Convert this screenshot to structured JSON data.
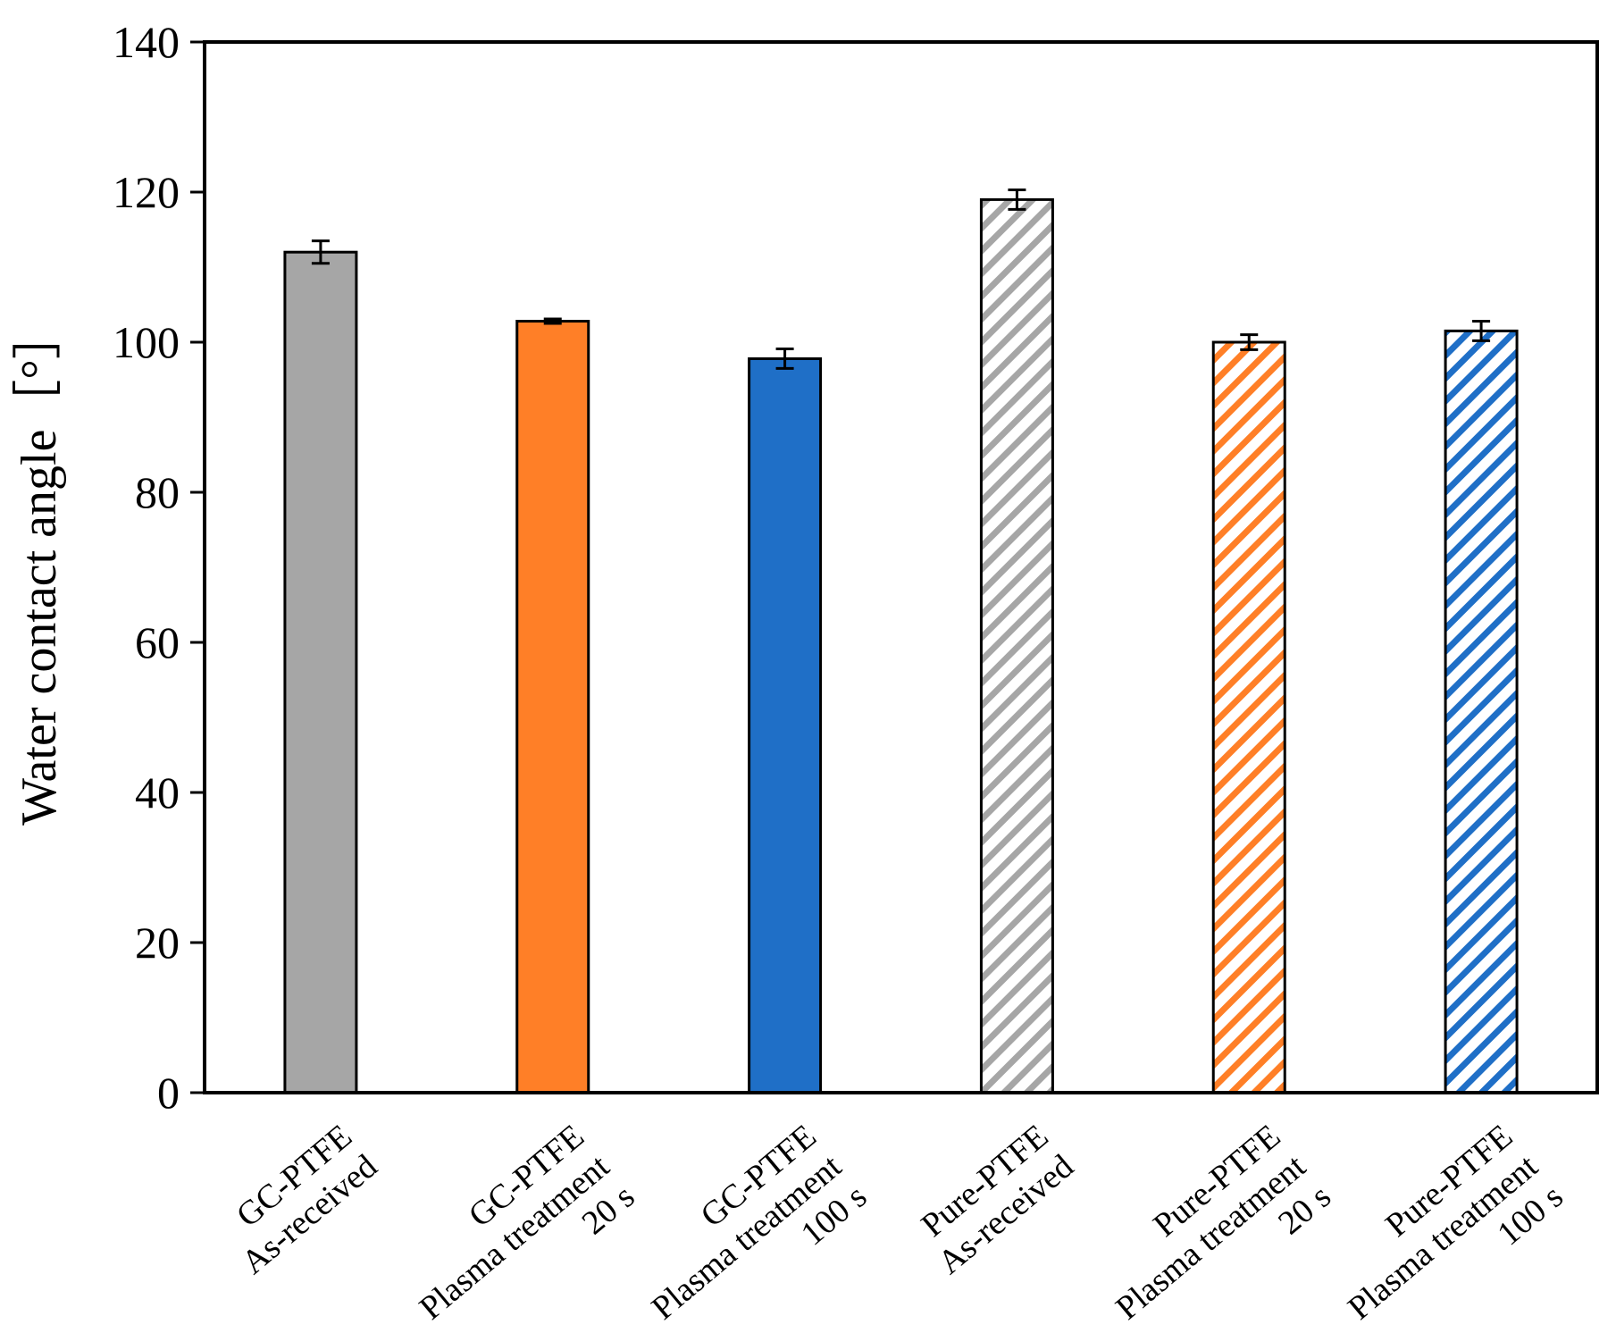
{
  "chart_data": {
    "type": "bar",
    "title": "",
    "xlabel": "",
    "ylabel": "Water contact angle［°］",
    "ylim": [
      0,
      140
    ],
    "yticks": [
      0,
      20,
      40,
      60,
      80,
      100,
      120,
      140
    ],
    "grid": false,
    "legend": "none",
    "categories": [
      [
        "GC-PTFE",
        "As-received"
      ],
      [
        "GC-PTFE",
        "Plasma treatment",
        "20 s"
      ],
      [
        "GC-PTFE",
        "Plasma treatment",
        "100 s"
      ],
      [
        "Pure-PTFE",
        "As-received"
      ],
      [
        "Pure-PTFE",
        "Plasma treatment",
        "20 s"
      ],
      [
        "Pure-PTFE",
        "Plasma treatment",
        "100 s"
      ]
    ],
    "values": [
      112.0,
      102.8,
      97.8,
      119.0,
      100.0,
      101.5
    ],
    "errors": [
      1.5,
      0.3,
      1.3,
      1.3,
      1.0,
      1.3
    ],
    "styles": [
      {
        "fill": "solid",
        "color": "#A6A6A6"
      },
      {
        "fill": "solid",
        "color": "#FF7F27"
      },
      {
        "fill": "solid",
        "color": "#1F6FC7"
      },
      {
        "fill": "hatched",
        "color": "#A6A6A6"
      },
      {
        "fill": "hatched",
        "color": "#FF7F27"
      },
      {
        "fill": "hatched",
        "color": "#1F6FC7"
      }
    ]
  }
}
